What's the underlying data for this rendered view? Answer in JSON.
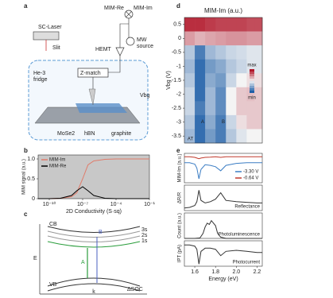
{
  "panel_labels": [
    "a",
    "b",
    "c",
    "d",
    "e"
  ],
  "diagram_a": {
    "labels": [
      "SC-Laser",
      "Slit",
      "He-3",
      "fridge",
      "Z-match",
      "HEMT",
      "MIM-Re",
      "MIM-Im",
      "MW",
      "source",
      "Vbg",
      "MoSe2",
      "hBN",
      "graphite"
    ]
  },
  "diagram_c": {
    "labels": [
      "CB",
      "VB",
      "E",
      "k",
      "3s",
      "2s",
      "1s",
      "B",
      "A",
      "ΔSOC"
    ]
  },
  "chart_data": [
    {
      "type": "line",
      "xlabel": "2D Conductivity (S·sq)",
      "ylabel": "MIM signal (a.u.)",
      "xscale": "log",
      "xlim": [
        1e-11,
        0.1
      ],
      "xticks": [
        {
          "value": 1e-10,
          "label": "10⁻¹⁰"
        },
        {
          "value": 1e-07,
          "label": "10⁻⁷"
        },
        {
          "value": 0.0001,
          "label": "10⁻⁴"
        },
        {
          "value": 0.1,
          "label": "10⁻¹"
        }
      ],
      "ylim": [
        0,
        1.1
      ],
      "yticks": [
        0,
        0.5,
        {
          "value": 1,
          "label": "1.0"
        }
      ],
      "legend": "upper left",
      "background": "#c8c8c8",
      "x": [
        1e-11,
        1e-10,
        1e-09,
        1e-08,
        3e-08,
        1e-07,
        3e-07,
        1e-06,
        1e-05,
        0.0001,
        0.001,
        0.01,
        0.1
      ],
      "series": [
        {
          "name": "MIM-Im",
          "color": "#e07b6a",
          "values": [
            0,
            0,
            0.01,
            0.05,
            0.15,
            0.5,
            0.85,
            0.95,
            0.99,
            1,
            1,
            1,
            1
          ]
        },
        {
          "name": "MIM-Re",
          "color": "#000000",
          "values": [
            0,
            0,
            0.01,
            0.08,
            0.2,
            0.3,
            0.2,
            0.08,
            0.01,
            0,
            0,
            0,
            0
          ]
        }
      ]
    },
    {
      "type": "heatmap",
      "title": "MIM-Im (a.u.)",
      "ylabel": "Vbg (V)",
      "xlim": [
        1.5,
        2.25
      ],
      "ylim": [
        -3.75,
        0.75
      ],
      "yticks": [
        0.5,
        0,
        -0.5,
        -1,
        -1.5,
        -2,
        -2.5,
        -3,
        -3.5
      ],
      "colorbar_labels": [
        "max",
        "min"
      ],
      "annotations": [
        "AT",
        "A",
        "B"
      ],
      "x": [
        1.55,
        1.65,
        1.75,
        1.85,
        1.95,
        2.05,
        2.15,
        2.2
      ],
      "y": [
        0.5,
        0,
        -0.5,
        -1,
        -1.5,
        -2,
        -2.5,
        -3,
        -3.5
      ],
      "z": [
        [
          0.95,
          0.95,
          0.92,
          0.9,
          0.9,
          0.9,
          0.88,
          0.88
        ],
        [
          0.7,
          0.65,
          0.68,
          0.7,
          0.72,
          0.72,
          0.7,
          0.7
        ],
        [
          0.35,
          0.1,
          0.3,
          0.35,
          0.4,
          0.42,
          0.45,
          0.45
        ],
        [
          0.3,
          0.05,
          0.2,
          0.25,
          0.35,
          0.4,
          0.45,
          0.45
        ],
        [
          0.35,
          0.05,
          0.25,
          0.2,
          0.4,
          0.5,
          0.55,
          0.55
        ],
        [
          0.4,
          0.05,
          0.3,
          0.15,
          0.5,
          0.6,
          0.62,
          0.6
        ],
        [
          0.4,
          0.1,
          0.3,
          0.15,
          0.5,
          0.6,
          0.6,
          0.6
        ],
        [
          0.35,
          0.05,
          0.25,
          0.1,
          0.4,
          0.55,
          0.6,
          0.6
        ],
        [
          0.3,
          0.05,
          0.2,
          0.1,
          0.35,
          0.45,
          0.5,
          0.5
        ]
      ]
    },
    {
      "type": "line",
      "ylabel": "MIM-Im (a.u.)",
      "xlim": [
        1.5,
        2.25
      ],
      "ylim": [
        -1,
        1.2
      ],
      "legend": "lower right",
      "x": [
        1.5,
        1.55,
        1.6,
        1.62,
        1.64,
        1.66,
        1.7,
        1.75,
        1.8,
        1.85,
        1.9,
        2.0,
        2.1,
        2.2,
        2.25
      ],
      "series": [
        {
          "name": "-3.30 V",
          "color": "#3b7dc4",
          "values": [
            0.5,
            0.5,
            0.4,
            0.1,
            -0.7,
            0.0,
            0.35,
            0.3,
            0.2,
            -0.1,
            0.3,
            0.45,
            0.5,
            0.5,
            0.5
          ]
        },
        {
          "name": "-0.64 V",
          "color": "#c0392b",
          "values": [
            0.95,
            0.95,
            0.9,
            0.85,
            0.8,
            0.85,
            0.9,
            0.92,
            0.95,
            0.9,
            0.95,
            0.95,
            0.95,
            0.95,
            0.95
          ]
        }
      ]
    },
    {
      "type": "line",
      "ylabel": "ΔR/R",
      "annotation": "Reflectance",
      "xlim": [
        1.5,
        2.25
      ],
      "ylim": [
        -1,
        1
      ],
      "x": [
        1.5,
        1.55,
        1.6,
        1.62,
        1.64,
        1.66,
        1.7,
        1.75,
        1.8,
        1.85,
        1.9,
        2.0,
        2.1,
        2.2,
        2.25
      ],
      "series": [
        {
          "name": null,
          "color": "#333333",
          "values": [
            -0.8,
            -0.75,
            -0.6,
            -0.3,
            0.6,
            -0.2,
            -0.4,
            -0.3,
            -0.1,
            0.4,
            -0.2,
            -0.3,
            -0.35,
            -0.4,
            -0.4
          ]
        }
      ]
    },
    {
      "type": "line",
      "ylabel": "Count (a.u.)",
      "annotation": "Photoluminescence",
      "xlim": [
        1.5,
        2.25
      ],
      "ylim": [
        0,
        1
      ],
      "x": [
        1.5,
        1.6,
        1.65,
        1.68,
        1.7,
        1.72,
        1.74,
        1.76,
        1.78,
        1.8,
        1.82,
        1.85,
        1.9,
        2.0,
        2.25
      ],
      "series": [
        {
          "name": null,
          "color": "#333333",
          "values": [
            0,
            0,
            0.02,
            0.2,
            0.45,
            0.6,
            0.55,
            0.7,
            0.6,
            0.5,
            0.2,
            0.05,
            0,
            0,
            0
          ]
        }
      ]
    },
    {
      "type": "line",
      "ylabel": "IPT (pA)",
      "annotation": "Photocurrent",
      "xlabel": "Energy (eV)",
      "xlim": [
        1.5,
        2.25
      ],
      "ylim": [
        -1,
        0.2
      ],
      "xticks": [
        1.6,
        1.8,
        {
          "value": 2,
          "label": "2.0"
        },
        2.2
      ],
      "x": [
        1.5,
        1.55,
        1.6,
        1.62,
        1.64,
        1.66,
        1.7,
        1.75,
        1.8,
        1.85,
        1.9,
        2.0,
        2.1,
        2.2,
        2.25
      ],
      "series": [
        {
          "name": null,
          "color": "#333333",
          "values": [
            0,
            0,
            -0.05,
            -0.2,
            -0.9,
            -0.3,
            -0.15,
            -0.15,
            -0.2,
            -0.5,
            -0.3,
            -0.25,
            -0.3,
            -0.35,
            -0.35
          ]
        }
      ]
    }
  ]
}
